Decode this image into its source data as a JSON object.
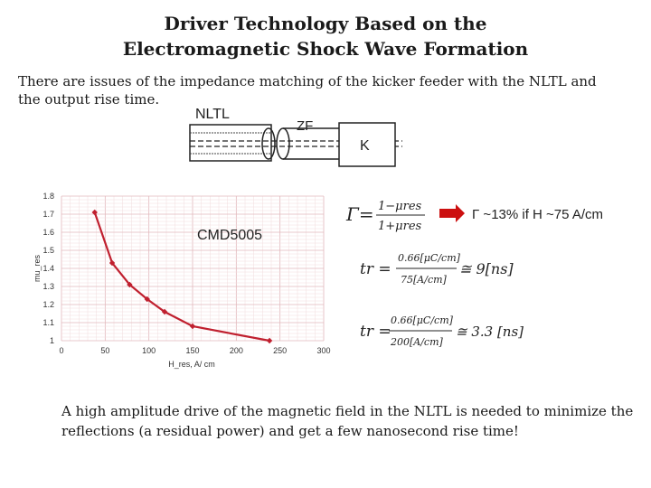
{
  "slide": {
    "title_line1": "Driver Technology Based on the",
    "title_line2": "Electromagnetic Shock Wave Formation",
    "intro": "There are issues of the impedance matching of the kicker feeder with the NLTL and the output rise time.",
    "conclusion": "A high amplitude drive of the magnetic field in the NLTL is needed to minimize the reflections (a residual power) and get a few nanosecond rise time!"
  },
  "schematic": {
    "nltl_label": "NLTL",
    "feeder_label": "ZF",
    "kicker_label": "K"
  },
  "chart_data": {
    "type": "line",
    "xlabel": "H_res, A/ cm",
    "ylabel": "mu_res",
    "xlim": [
      0,
      300
    ],
    "ylim": [
      1,
      1.8
    ],
    "x_ticks": [
      "0",
      "50",
      "100",
      "150",
      "200",
      "250",
      "300"
    ],
    "y_ticks": [
      "1",
      "1.1",
      "1.2",
      "1.3",
      "1.4",
      "1.5",
      "1.6",
      "1.7",
      "1.8"
    ],
    "grid": true,
    "series": [
      {
        "name": "CMD5005",
        "color": "#c0202f",
        "x": [
          38,
          58,
          78,
          98,
          118,
          150,
          238
        ],
        "y": [
          1.71,
          1.43,
          1.31,
          1.23,
          1.16,
          1.08,
          1.0
        ]
      }
    ]
  },
  "annotations": {
    "arrow_color": "#cc1010",
    "gamma_result": "Γ ~13% if H ~75 A/cm",
    "eq1_lhs": "Γ=",
    "eq1_num": "1−μres",
    "eq1_den": "1+μres",
    "eq2_lhs": "tr =",
    "eq2_num": "0.66[μC/cm]",
    "eq2_den": "75[A/cm]",
    "eq2_rhs": "≅ 9[ns]",
    "eq3_lhs": "tr =",
    "eq3_num": "0.66[μC/cm]",
    "eq3_den": "200[A/cm]",
    "eq3_rhs": "≅ 3.3 [ns]"
  }
}
